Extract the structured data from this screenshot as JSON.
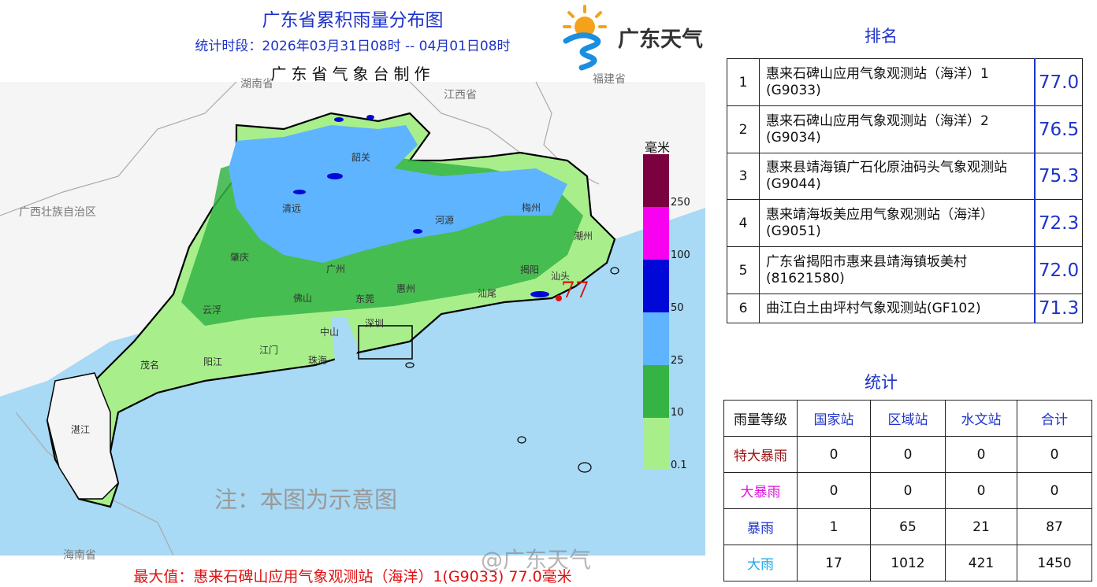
{
  "header": {
    "title": "广东省累积雨量分布图",
    "period": "统计时段：2026年03月31日08时  --  04月01日08时",
    "maker": "广东省气象台制作",
    "brand": "广东天气"
  },
  "map": {
    "neighbors": [
      "湖南省",
      "江西省",
      "福建省",
      "广西壮族自治区",
      "海南省"
    ],
    "cities": {
      "shaoguan": "韶关",
      "qingyuan": "清远",
      "heyuan": "河源",
      "meizhou": "梅州",
      "chaozhou": "潮州",
      "zhaoqing": "肇庆",
      "guangzhou": "广州",
      "huizhou": "惠州",
      "jieyang": "揭阳",
      "shantou": "汕头",
      "foshan": "佛山",
      "dongguan": "东莞",
      "shanwei": "汕尾",
      "yunfu": "云浮",
      "shenzhen": "深圳",
      "zhongshan": "中山",
      "jiangmen": "江门",
      "zhuhai": "珠海",
      "maoming": "茂名",
      "yangjiang": "阳江",
      "zhanjiang": "湛江"
    },
    "max_marker": "77",
    "note": "注：本图为示意图",
    "watermark": "@广东天气"
  },
  "legend": {
    "unit": "毫米",
    "levels": [
      {
        "label": "250",
        "color": "#7a0040"
      },
      {
        "label": "100",
        "color": "#f800f0"
      },
      {
        "label": "50",
        "color": "#0008d8"
      },
      {
        "label": "25",
        "color": "#5fb4ff"
      },
      {
        "label": "10",
        "color": "#35b445"
      },
      {
        "label": "0.1",
        "color": "#a8ef8c"
      }
    ]
  },
  "footer": {
    "max_text": "最大值：惠来石碑山应用气象观测站（海洋）1(G9033) 77.0毫米"
  },
  "ranking": {
    "title": "排名",
    "rows": [
      {
        "rank": "1",
        "name": "惠来石碑山应用气象观测站（海洋）1 (G9033)",
        "value": "77.0"
      },
      {
        "rank": "2",
        "name": "惠来石碑山应用气象观测站（海洋）2 (G9034)",
        "value": "76.5"
      },
      {
        "rank": "3",
        "name": "惠来县靖海镇广石化原油码头气象观测站 (G9044)",
        "value": "75.3"
      },
      {
        "rank": "4",
        "name": "惠来靖海坂美应用气象观测站（海洋） (G9051)",
        "value": "72.3"
      },
      {
        "rank": "5",
        "name": "广东省揭阳市惠来县靖海镇坂美村 (81621580)",
        "value": "72.0"
      },
      {
        "rank": "6",
        "name": "曲江白土由坪村气象观测站(GF102)",
        "value": "71.3"
      }
    ]
  },
  "stats": {
    "title": "统计",
    "headers": [
      "雨量等级",
      "国家站",
      "区域站",
      "水文站",
      "合计"
    ],
    "rows": [
      {
        "level": "特大暴雨",
        "color": "#9a1010",
        "values": [
          "0",
          "0",
          "0",
          "0"
        ]
      },
      {
        "level": "大暴雨",
        "color": "#e010e0",
        "values": [
          "0",
          "0",
          "0",
          "0"
        ]
      },
      {
        "level": "暴雨",
        "color": "#1e33c8",
        "values": [
          "1",
          "65",
          "21",
          "87"
        ]
      },
      {
        "level": "大雨",
        "color": "#1aa8e8",
        "values": [
          "17",
          "1012",
          "421",
          "1450"
        ]
      }
    ]
  }
}
